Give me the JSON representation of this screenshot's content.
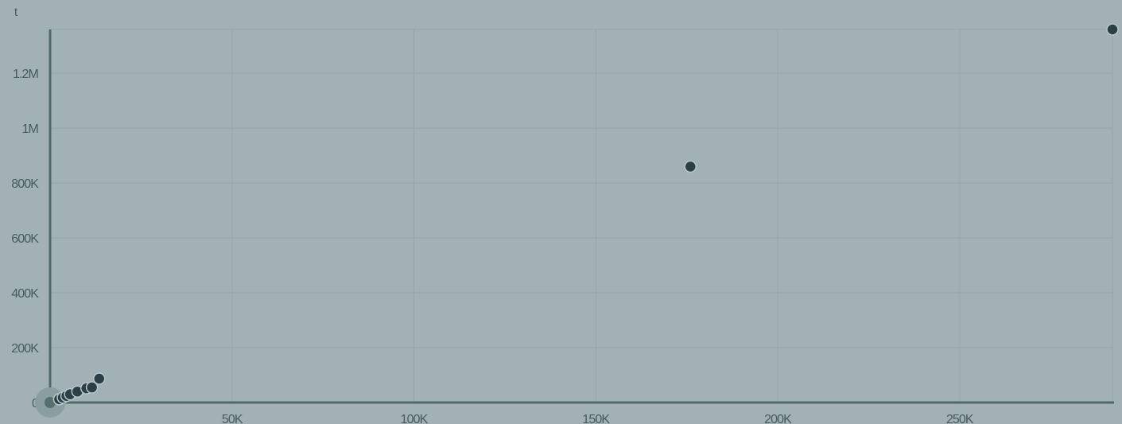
{
  "chart_data": {
    "type": "scatter",
    "ylabel": "t",
    "xlim": [
      0,
      292000
    ],
    "ylim": [
      0,
      1360000
    ],
    "grid": true,
    "x_ticks": [
      {
        "value": 50000,
        "label": "50K"
      },
      {
        "value": 100000,
        "label": "100K"
      },
      {
        "value": 150000,
        "label": "150K"
      },
      {
        "value": 200000,
        "label": "200K"
      },
      {
        "value": 250000,
        "label": "250K"
      }
    ],
    "y_ticks": [
      {
        "value": 0,
        "label": "0"
      },
      {
        "value": 200000,
        "label": "200K"
      },
      {
        "value": 400000,
        "label": "400K"
      },
      {
        "value": 600000,
        "label": "600K"
      },
      {
        "value": 800000,
        "label": "800K"
      },
      {
        "value": 1000000,
        "label": "1M"
      },
      {
        "value": 1200000,
        "label": "1.2M"
      }
    ],
    "points": [
      {
        "x": 0,
        "y": 0,
        "highlighted": true
      },
      {
        "x": 2500,
        "y": 12000
      },
      {
        "x": 3500,
        "y": 18000
      },
      {
        "x": 4500,
        "y": 24000
      },
      {
        "x": 5500,
        "y": 30000
      },
      {
        "x": 7500,
        "y": 40000
      },
      {
        "x": 10000,
        "y": 52000
      },
      {
        "x": 11500,
        "y": 55000
      },
      {
        "x": 13500,
        "y": 87000
      },
      {
        "x": 176000,
        "y": 860000
      },
      {
        "x": 292000,
        "y": 1360000
      }
    ],
    "colors": {
      "background": "#a2b1b5",
      "point": "#2b3f46",
      "point_stroke": "#b7c6c8",
      "highlight_halo": "#8a9ea2",
      "highlight_point": "#57706e",
      "axis": "#4f6a69",
      "grid": "#94a6aa",
      "label": "#475b5d"
    }
  }
}
